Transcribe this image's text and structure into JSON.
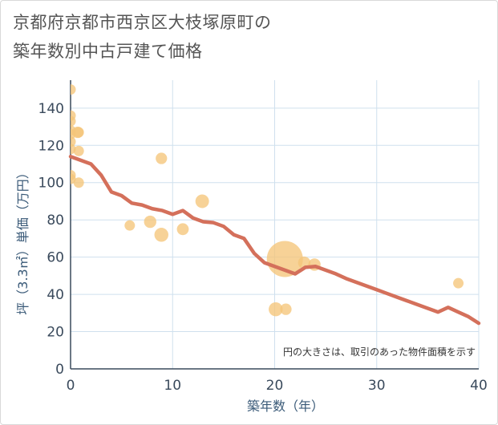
{
  "chart_data": {
    "type": "scatter",
    "title_lines": [
      "京都府京都市西京区大枝塚原町の",
      "築年数別中古戸建て価格"
    ],
    "xlabel": "築年数（年）",
    "ylabel": "坪（3.3㎡）単価（万円）",
    "xlim": [
      0,
      40
    ],
    "ylim": [
      0,
      155
    ],
    "xticks": [
      0,
      10,
      20,
      30,
      40
    ],
    "yticks": [
      0,
      20,
      40,
      60,
      80,
      100,
      120,
      140
    ],
    "note": "円の大きさは、取引のあった物件面積を示す",
    "colors": {
      "bubble": "#f5c57a",
      "line": "#d4705b",
      "grid": "#cfe0ee",
      "axis": "#3a4a5c"
    },
    "bubbles": [
      {
        "x": 0,
        "y": 150,
        "s": 1
      },
      {
        "x": 0,
        "y": 136,
        "s": 1
      },
      {
        "x": 0,
        "y": 133,
        "s": 1
      },
      {
        "x": 0,
        "y": 128,
        "s": 1
      },
      {
        "x": 0,
        "y": 126,
        "s": 1
      },
      {
        "x": 0,
        "y": 122,
        "s": 1
      },
      {
        "x": 0,
        "y": 118,
        "s": 1
      },
      {
        "x": 0,
        "y": 104,
        "s": 1
      },
      {
        "x": 0,
        "y": 102,
        "s": 1
      },
      {
        "x": 0.7,
        "y": 127,
        "s": 1.2
      },
      {
        "x": 0.8,
        "y": 127,
        "s": 1
      },
      {
        "x": 0.8,
        "y": 117,
        "s": 1
      },
      {
        "x": 0.8,
        "y": 100,
        "s": 1
      },
      {
        "x": 5.8,
        "y": 77,
        "s": 1
      },
      {
        "x": 7.8,
        "y": 79,
        "s": 1.4
      },
      {
        "x": 8.9,
        "y": 113,
        "s": 1.2
      },
      {
        "x": 8.9,
        "y": 72,
        "s": 1.8
      },
      {
        "x": 11,
        "y": 75,
        "s": 1.3
      },
      {
        "x": 12.9,
        "y": 90,
        "s": 1.7
      },
      {
        "x": 20.1,
        "y": 32,
        "s": 1.8
      },
      {
        "x": 21,
        "y": 59,
        "s": 12
      },
      {
        "x": 21.1,
        "y": 32,
        "s": 1.2
      },
      {
        "x": 22.9,
        "y": 57,
        "s": 1.4
      },
      {
        "x": 23.9,
        "y": 56,
        "s": 1.4
      },
      {
        "x": 38,
        "y": 46,
        "s": 1
      }
    ],
    "trend": {
      "x": [
        0,
        1,
        2,
        3,
        4,
        5,
        6,
        7,
        8,
        9,
        10,
        11,
        12,
        13,
        14,
        15,
        16,
        17,
        18,
        19,
        20,
        21,
        22,
        23,
        24,
        25,
        26,
        27,
        28,
        29,
        30,
        31,
        32,
        33,
        34,
        35,
        36,
        37,
        38,
        39,
        40
      ],
      "y": [
        114,
        112,
        110,
        104,
        95,
        93,
        89,
        88,
        86,
        85,
        83,
        85,
        81,
        79,
        78.5,
        76.5,
        72,
        70,
        62,
        57,
        55,
        53,
        51,
        54.5,
        55,
        53,
        51,
        48.5,
        46.5,
        44.5,
        42.5,
        40.5,
        38.5,
        36.5,
        34.5,
        32.5,
        30.5,
        33,
        30.5,
        28,
        24.5
      ]
    }
  }
}
